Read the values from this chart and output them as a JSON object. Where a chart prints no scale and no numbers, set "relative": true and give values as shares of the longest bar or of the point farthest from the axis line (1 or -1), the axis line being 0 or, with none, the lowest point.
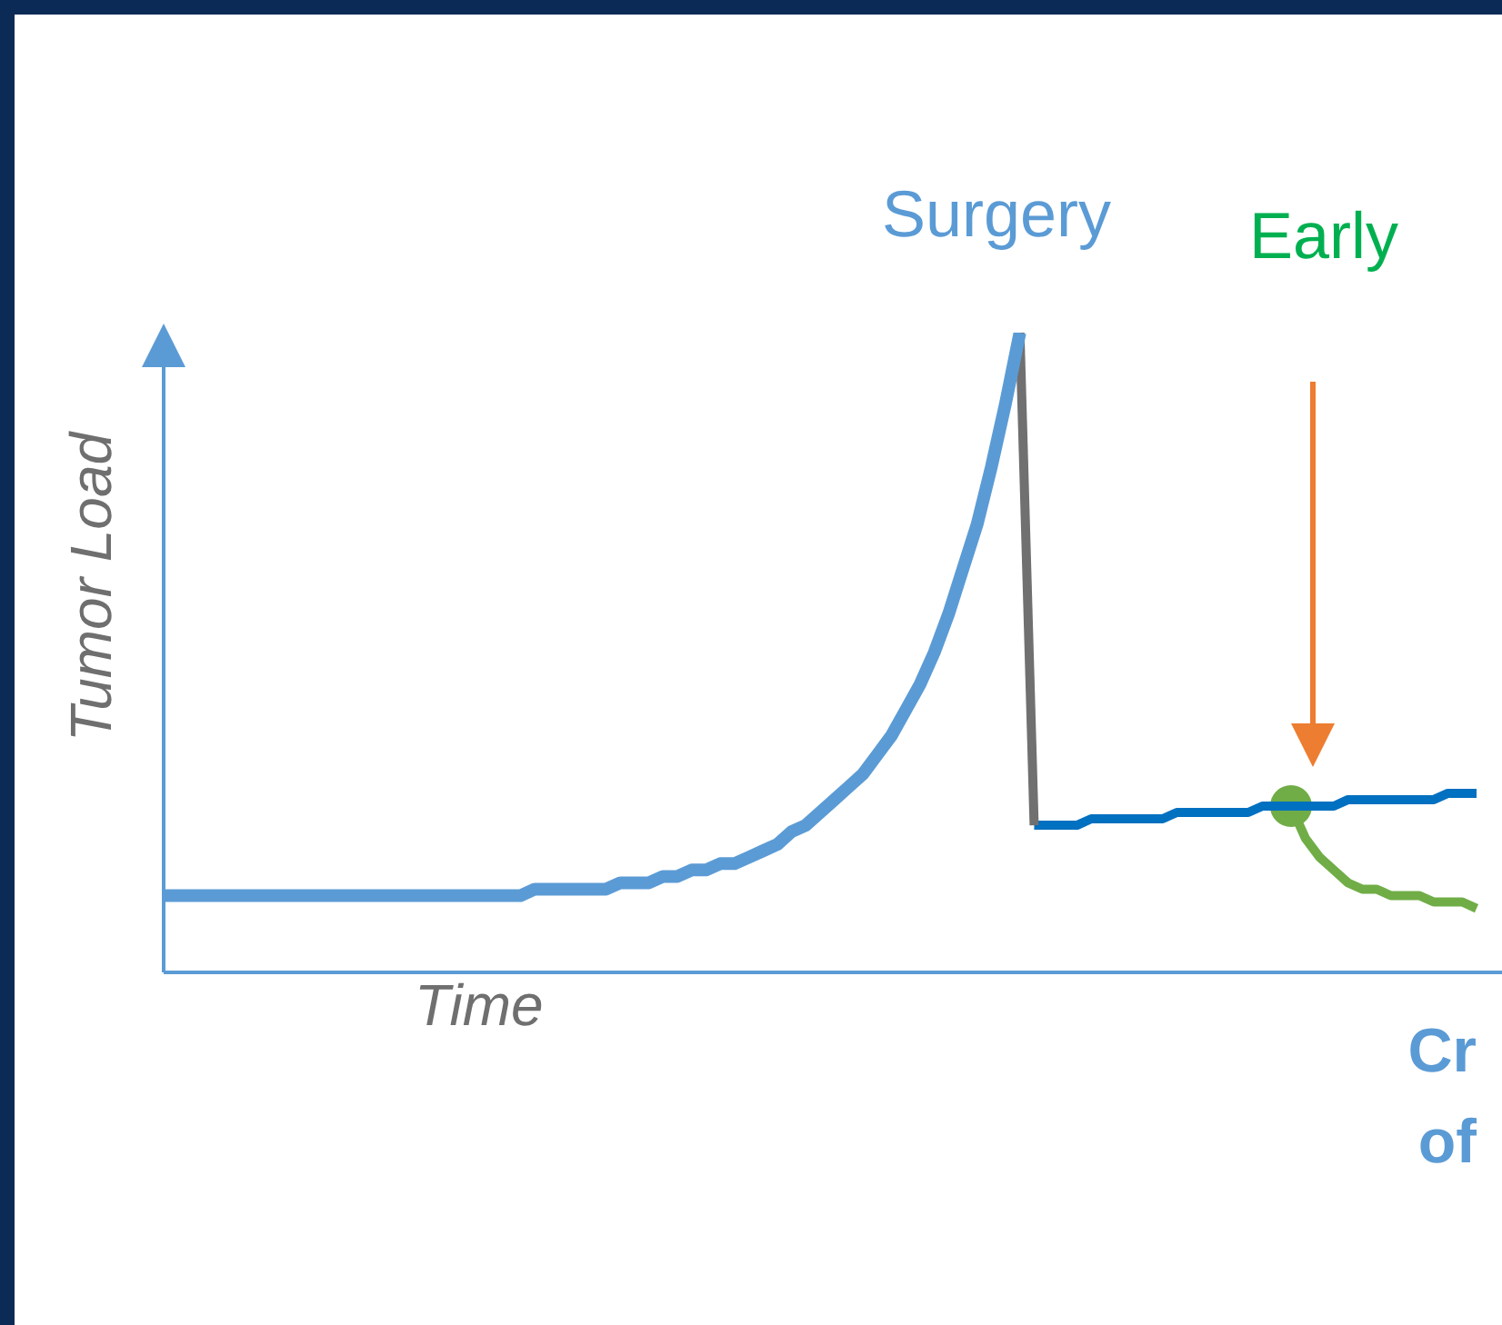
{
  "chart_data": {
    "type": "line",
    "relative": true,
    "ylabel": "Tumor Load",
    "xlabel": "Time",
    "legend": false,
    "grid": false,
    "marker": "none",
    "annotations": [
      "Surgery",
      "Early",
      "Cr",
      "of"
    ],
    "categories": [
      null,
      null,
      null,
      null,
      null,
      null,
      null,
      null,
      null,
      null,
      null,
      null,
      null,
      null,
      null,
      null,
      null,
      null,
      null,
      null,
      null,
      null,
      null,
      null,
      null,
      null,
      null,
      null,
      null,
      null,
      null,
      null,
      null,
      null,
      null,
      null,
      null,
      null,
      null,
      null,
      null,
      null,
      null,
      null,
      null,
      null,
      null,
      null,
      null,
      null,
      null,
      null,
      null,
      null,
      null,
      null,
      null,
      null,
      null,
      null,
      null,
      null,
      null,
      null,
      null,
      null,
      null,
      null,
      null,
      null,
      null,
      null,
      null,
      null,
      null,
      null,
      null,
      null,
      null,
      null,
      null,
      null,
      null,
      null,
      null,
      null,
      null,
      null,
      null,
      null,
      null,
      null,
      null
    ],
    "series": [
      {
        "color": "#5b9bd5",
        "values": [
          0.12,
          0.12,
          0.12,
          0.12,
          0.12,
          0.12,
          0.12,
          0.12,
          0.12,
          0.12,
          0.12,
          0.12,
          0.12,
          0.12,
          0.12,
          0.12,
          0.12,
          0.12,
          0.12,
          0.12,
          0.12,
          0.12,
          0.12,
          0.12,
          0.12,
          0.12,
          0.13,
          0.13,
          0.13,
          0.13,
          0.13,
          0.13,
          0.14,
          0.14,
          0.14,
          0.15,
          0.15,
          0.16,
          0.16,
          0.17,
          0.17,
          0.18,
          0.19,
          0.2,
          0.22,
          0.23,
          0.25,
          0.27,
          0.29,
          0.31,
          0.34,
          0.37,
          0.41,
          0.45,
          0.5,
          0.56,
          0.63,
          0.7,
          0.79,
          0.89,
          1,
          null,
          null,
          null,
          null,
          null,
          null,
          null,
          null,
          null,
          null,
          null,
          null,
          null,
          null,
          null,
          null,
          null,
          null,
          null,
          null,
          null,
          null,
          null,
          null,
          null,
          null,
          null,
          null,
          null,
          null,
          null,
          null
        ]
      },
      {
        "color": "#707070",
        "values": [
          null,
          null,
          null,
          null,
          null,
          null,
          null,
          null,
          null,
          null,
          null,
          null,
          null,
          null,
          null,
          null,
          null,
          null,
          null,
          null,
          null,
          null,
          null,
          null,
          null,
          null,
          null,
          null,
          null,
          null,
          null,
          null,
          null,
          null,
          null,
          null,
          null,
          null,
          null,
          null,
          null,
          null,
          null,
          null,
          null,
          null,
          null,
          null,
          null,
          null,
          null,
          null,
          null,
          null,
          null,
          null,
          null,
          null,
          null,
          null,
          1,
          0.23,
          null,
          null,
          null,
          null,
          null,
          null,
          null,
          null,
          null,
          null,
          null,
          null,
          null,
          null,
          null,
          null,
          null,
          null,
          null,
          null,
          null,
          null,
          null,
          null,
          null,
          null,
          null,
          null,
          null,
          null,
          null
        ]
      },
      {
        "color": "#0070c0",
        "values": [
          null,
          null,
          null,
          null,
          null,
          null,
          null,
          null,
          null,
          null,
          null,
          null,
          null,
          null,
          null,
          null,
          null,
          null,
          null,
          null,
          null,
          null,
          null,
          null,
          null,
          null,
          null,
          null,
          null,
          null,
          null,
          null,
          null,
          null,
          null,
          null,
          null,
          null,
          null,
          null,
          null,
          null,
          null,
          null,
          null,
          null,
          null,
          null,
          null,
          null,
          null,
          null,
          null,
          null,
          null,
          null,
          null,
          null,
          null,
          null,
          null,
          0.23,
          0.23,
          0.23,
          0.23,
          0.24,
          0.24,
          0.24,
          0.24,
          0.24,
          0.24,
          0.25,
          0.25,
          0.25,
          0.25,
          0.25,
          0.25,
          0.26,
          0.26,
          0.26,
          0.26,
          0.26,
          0.26,
          0.27,
          0.27,
          0.27,
          0.27,
          0.27,
          0.27,
          0.27,
          0.28,
          0.28,
          0.28
        ]
      },
      {
        "color": "#70ad47",
        "values": [
          null,
          null,
          null,
          null,
          null,
          null,
          null,
          null,
          null,
          null,
          null,
          null,
          null,
          null,
          null,
          null,
          null,
          null,
          null,
          null,
          null,
          null,
          null,
          null,
          null,
          null,
          null,
          null,
          null,
          null,
          null,
          null,
          null,
          null,
          null,
          null,
          null,
          null,
          null,
          null,
          null,
          null,
          null,
          null,
          null,
          null,
          null,
          null,
          null,
          null,
          null,
          null,
          null,
          null,
          null,
          null,
          null,
          null,
          null,
          null,
          null,
          null,
          null,
          null,
          null,
          null,
          null,
          null,
          null,
          null,
          null,
          null,
          null,
          null,
          null,
          null,
          null,
          null,
          null,
          0.26,
          0.21,
          0.18,
          0.16,
          0.14,
          0.13,
          0.13,
          0.12,
          0.12,
          0.12,
          0.11,
          0.11,
          0.11,
          0.1
        ]
      },
      {
        "marker": "circle",
        "color": "#70ad47",
        "values": [
          null,
          null,
          null,
          null,
          null,
          null,
          null,
          null,
          null,
          null,
          null,
          null,
          null,
          null,
          null,
          null,
          null,
          null,
          null,
          null,
          null,
          null,
          null,
          null,
          null,
          null,
          null,
          null,
          null,
          null,
          null,
          null,
          null,
          null,
          null,
          null,
          null,
          null,
          null,
          null,
          null,
          null,
          null,
          null,
          null,
          null,
          null,
          null,
          null,
          null,
          null,
          null,
          null,
          null,
          null,
          null,
          null,
          null,
          null,
          null,
          null,
          null,
          null,
          null,
          null,
          null,
          null,
          null,
          null,
          null,
          null,
          null,
          null,
          null,
          null,
          null,
          null,
          null,
          null,
          0.26,
          null,
          null,
          null,
          null,
          null,
          null,
          null,
          null,
          null,
          null,
          null,
          null,
          null
        ]
      }
    ]
  }
}
